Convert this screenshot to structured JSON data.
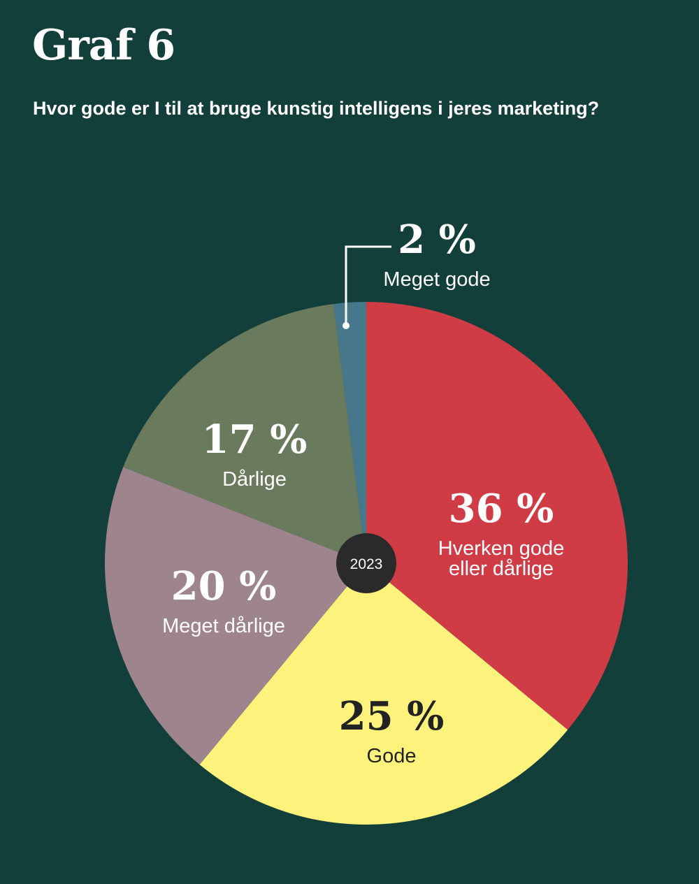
{
  "header": {
    "title": "Graf 6",
    "subtitle": "Hvor gode er I til at bruge kunstig intelligens i jeres marketing?"
  },
  "chart_data": {
    "type": "pie",
    "title": "Graf 6",
    "subtitle": "Hvor gode er I til at bruge kunstig intelligens i jeres marketing?",
    "center_label": "2023",
    "unit": "%",
    "slices": [
      {
        "label": "Hverken gode eller dårlige",
        "label_lines": [
          "Hverken gode",
          "eller dårlige"
        ],
        "value": 36,
        "value_text": "36 %",
        "color": "#d03c46",
        "text_color": "#ffffff"
      },
      {
        "label": "Gode",
        "label_lines": [
          "Gode"
        ],
        "value": 25,
        "value_text": "25 %",
        "color": "#fdf27b",
        "text_color": "#222222"
      },
      {
        "label": "Meget dårlige",
        "label_lines": [
          "Meget dårlige"
        ],
        "value": 20,
        "value_text": "20 %",
        "color": "#9d848d",
        "text_color": "#ffffff"
      },
      {
        "label": "Dårlige",
        "label_lines": [
          "Dårlige"
        ],
        "value": 17,
        "value_text": "17 %",
        "color": "#6a7b5d",
        "text_color": "#ffffff"
      },
      {
        "label": "Meget gode",
        "label_lines": [
          "Meget gode"
        ],
        "value": 2,
        "value_text": "2 %",
        "color": "#46778a",
        "text_color": "#ffffff"
      }
    ],
    "colors": {
      "background": "#133f3b",
      "center_dot": "#2a2a2a",
      "leader_line": "#ffffff"
    }
  }
}
